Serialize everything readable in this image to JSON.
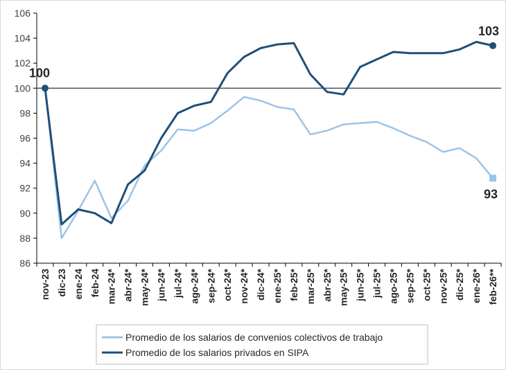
{
  "chart_data": {
    "type": "line",
    "title": "",
    "xlabel": "",
    "ylabel": "",
    "ylim": [
      86,
      106
    ],
    "yticks": [
      86,
      88,
      90,
      92,
      94,
      96,
      98,
      100,
      102,
      104,
      106
    ],
    "reference_line": 100,
    "grid": false,
    "legend_position": "bottom",
    "categories": [
      "nov-23",
      "dic-23",
      "ene-24",
      "feb-24",
      "mar-24*",
      "abr-24*",
      "may-24*",
      "jun-24*",
      "jul-24*",
      "ago-24*",
      "sep-24*",
      "oct-24*",
      "nov-24*",
      "dic-24*",
      "ene-25*",
      "feb-25*",
      "mar-25*",
      "abr-25*",
      "may-25*",
      "jun-25*",
      "jul-25*",
      "ago-25*",
      "sep-25*",
      "oct-25*",
      "nov-25*",
      "dic-25*",
      "ene-26*",
      "feb-26**"
    ],
    "series": [
      {
        "name": "Promedio de los salarios de convenios colectivos de trabajo",
        "color": "#9dc3e6",
        "values": [
          100,
          88.0,
          90.2,
          92.6,
          89.6,
          91.0,
          93.8,
          95.0,
          96.7,
          96.6,
          97.2,
          98.2,
          99.3,
          99.0,
          98.5,
          98.3,
          96.3,
          96.6,
          97.1,
          97.2,
          97.3,
          96.8,
          96.2,
          95.7,
          94.9,
          95.2,
          94.4,
          92.8
        ],
        "end_label": "93",
        "end_marker": "square"
      },
      {
        "name": "Promedio de los salarios privados en SIPA",
        "color": "#1f4e79",
        "values": [
          100,
          89.1,
          90.3,
          90.0,
          89.2,
          92.3,
          93.4,
          96.0,
          98.0,
          98.6,
          98.9,
          101.2,
          102.5,
          103.2,
          103.5,
          103.6,
          101.1,
          99.7,
          99.5,
          101.7,
          102.3,
          102.9,
          102.8,
          102.8,
          102.8,
          103.1,
          103.7,
          103.4
        ],
        "end_label": "103",
        "start_label": "100",
        "end_marker": "circle"
      }
    ]
  }
}
